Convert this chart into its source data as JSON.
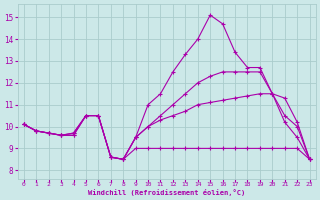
{
  "background_color": "#cce8e8",
  "grid_color": "#aacccc",
  "line_color": "#aa00aa",
  "xlim": [
    -0.5,
    23.5
  ],
  "ylim": [
    7.6,
    15.6
  ],
  "xlabel": "Windchill (Refroidissement éolien,°C)",
  "xticks": [
    0,
    1,
    2,
    3,
    4,
    5,
    6,
    7,
    8,
    9,
    10,
    11,
    12,
    13,
    14,
    15,
    16,
    17,
    18,
    19,
    20,
    21,
    22,
    23
  ],
  "yticks": [
    8,
    9,
    10,
    11,
    12,
    13,
    14,
    15
  ],
  "curves": [
    {
      "x": [
        0,
        1,
        2,
        3,
        4,
        5,
        6,
        7,
        8,
        9,
        10,
        11,
        12,
        13,
        14,
        15,
        16,
        17,
        18,
        19,
        20,
        21,
        22,
        23
      ],
      "y": [
        10.1,
        9.8,
        9.7,
        9.6,
        9.6,
        10.5,
        10.5,
        8.6,
        8.5,
        9.0,
        9.0,
        9.0,
        9.0,
        9.0,
        9.0,
        9.0,
        9.0,
        9.0,
        9.0,
        9.0,
        9.0,
        9.0,
        9.0,
        8.5
      ]
    },
    {
      "x": [
        0,
        1,
        2,
        3,
        4,
        5,
        6,
        7,
        8,
        9,
        10,
        11,
        12,
        13,
        14,
        15,
        16,
        17,
        18,
        19,
        20,
        21,
        22,
        23
      ],
      "y": [
        10.1,
        9.8,
        9.7,
        9.6,
        9.6,
        10.5,
        10.5,
        8.6,
        8.5,
        9.5,
        10.0,
        10.3,
        10.5,
        10.7,
        11.0,
        11.1,
        11.2,
        11.3,
        11.4,
        11.5,
        11.5,
        11.3,
        10.2,
        8.5
      ]
    },
    {
      "x": [
        0,
        1,
        2,
        3,
        4,
        5,
        6,
        7,
        8,
        9,
        10,
        11,
        12,
        13,
        14,
        15,
        16,
        17,
        18,
        19,
        20,
        21,
        22,
        23
      ],
      "y": [
        10.1,
        9.8,
        9.7,
        9.6,
        9.7,
        10.5,
        10.5,
        8.6,
        8.5,
        9.5,
        10.0,
        10.5,
        11.0,
        11.5,
        12.0,
        12.3,
        12.5,
        12.5,
        12.5,
        12.5,
        11.5,
        10.5,
        10.0,
        8.5
      ]
    },
    {
      "x": [
        0,
        1,
        2,
        3,
        4,
        5,
        6,
        7,
        8,
        9,
        10,
        11,
        12,
        13,
        14,
        15,
        16,
        17,
        18,
        19,
        20,
        21,
        22,
        23
      ],
      "y": [
        10.1,
        9.8,
        9.7,
        9.6,
        9.7,
        10.5,
        10.5,
        8.6,
        8.5,
        9.5,
        11.0,
        11.5,
        12.5,
        13.3,
        14.0,
        15.1,
        14.7,
        13.4,
        12.7,
        12.7,
        11.5,
        10.2,
        9.5,
        8.5
      ]
    }
  ]
}
